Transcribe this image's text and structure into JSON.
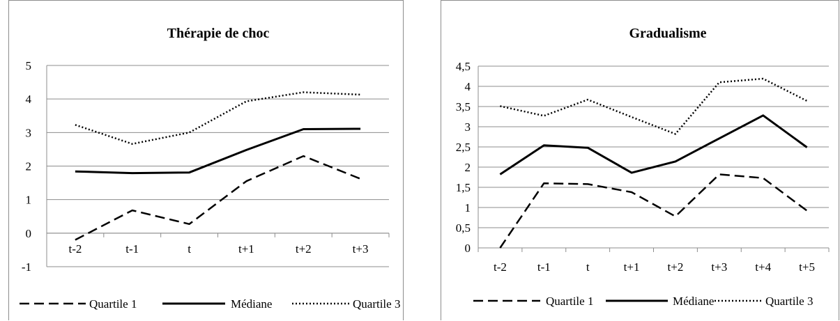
{
  "chart_data": [
    {
      "type": "line",
      "title": "Thérapie de choc",
      "categories": [
        "t-2",
        "t-1",
        "t",
        "t+1",
        "t+2",
        "t+3"
      ],
      "ylim": [
        -1,
        5
      ],
      "yticks": [
        -1,
        0,
        1,
        2,
        3,
        4,
        5
      ],
      "ytick_labels": [
        "-1",
        "0",
        "1",
        "2",
        "3",
        "4",
        "5"
      ],
      "grid": true,
      "legend_position": "bottom",
      "series": [
        {
          "name": "Quartile 1",
          "style": "dashed",
          "values": [
            -0.2,
            0.68,
            0.27,
            1.55,
            2.3,
            1.62
          ]
        },
        {
          "name": "Médiane",
          "style": "solid",
          "values": [
            1.84,
            1.79,
            1.81,
            2.48,
            3.1,
            3.11
          ]
        },
        {
          "name": "Quartile 3",
          "style": "dotted",
          "values": [
            3.23,
            2.66,
            3.0,
            3.93,
            4.2,
            4.13
          ]
        }
      ]
    },
    {
      "type": "line",
      "title": "Gradualisme",
      "categories": [
        "t-2",
        "t-1",
        "t",
        "t+1",
        "t+2",
        "t+3",
        "t+4",
        "t+5"
      ],
      "ylim": [
        0,
        4.5
      ],
      "yticks": [
        0,
        0.5,
        1,
        1.5,
        2,
        2.5,
        3,
        3.5,
        4,
        4.5
      ],
      "ytick_labels": [
        "0",
        "0,5",
        "1",
        "1,5",
        "2",
        "2,5",
        "3",
        "3,5",
        "4",
        "4,5"
      ],
      "grid": true,
      "legend_position": "bottom",
      "series": [
        {
          "name": "Quartile 1",
          "style": "dashed",
          "values": [
            0.0,
            1.6,
            1.58,
            1.38,
            0.78,
            1.82,
            1.73,
            0.92
          ]
        },
        {
          "name": "Médiane",
          "style": "solid",
          "values": [
            1.82,
            2.54,
            2.48,
            1.86,
            2.14,
            2.71,
            3.28,
            2.49
          ]
        },
        {
          "name": "Quartile 3",
          "style": "dotted",
          "values": [
            3.51,
            3.27,
            3.67,
            3.24,
            2.82,
            4.1,
            4.19,
            3.64
          ]
        }
      ]
    }
  ]
}
